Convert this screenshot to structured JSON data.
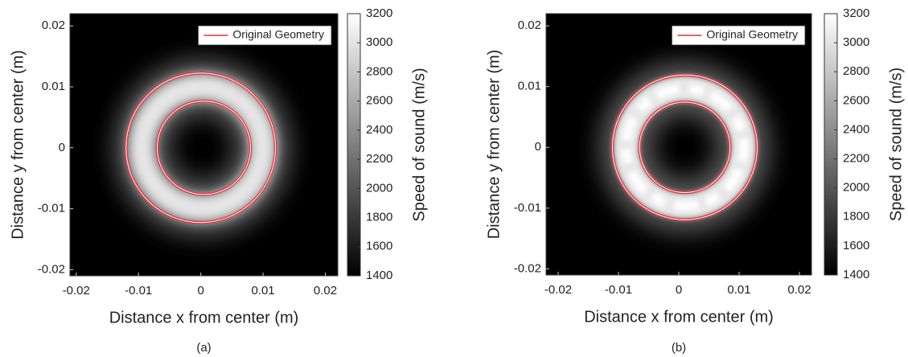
{
  "chart_data": [
    {
      "type": "heatmap",
      "caption": "(a)",
      "xlabel": "Distance x from center (m)",
      "ylabel": "Distance y from center (m)",
      "xlim": [
        -0.021,
        0.022
      ],
      "ylim": [
        -0.021,
        0.022
      ],
      "xticks": [
        -0.02,
        -0.01,
        0,
        0.01,
        0.02
      ],
      "yticks": [
        -0.02,
        -0.01,
        0,
        0.01,
        0.02
      ],
      "colormap": "gray",
      "colorbar_label": "Speed of sound (m/s)",
      "clim": [
        1400,
        3200
      ],
      "cticks": [
        1400,
        1600,
        1800,
        2000,
        2200,
        2400,
        2600,
        2800,
        3000,
        3200
      ],
      "legend": "upper right",
      "series": [
        {
          "name": "Original Geometry",
          "color": "#e0303a",
          "cx": [
            0,
            0.0005
          ],
          "cy": [
            0,
            0
          ],
          "r": [
            0.012,
            0.0075
          ]
        }
      ]
    },
    {
      "type": "heatmap",
      "caption": "(b)",
      "xlabel": "Distance x from center (m)",
      "ylabel": "Distance y from center (m)",
      "xlim": [
        -0.022,
        0.022
      ],
      "ylim": [
        -0.021,
        0.022
      ],
      "xticks": [
        -0.02,
        -0.01,
        0,
        0.01,
        0.02
      ],
      "yticks": [
        -0.02,
        -0.01,
        0,
        0.01,
        0.02
      ],
      "colormap": "gray",
      "colorbar_label": "Speed of sound (m/s)",
      "clim": [
        1400,
        3200
      ],
      "cticks": [
        1400,
        1600,
        1800,
        2000,
        2200,
        2400,
        2600,
        2800,
        3000,
        3200
      ],
      "legend": "upper right",
      "series": [
        {
          "name": "Original Geometry",
          "color": "#e0303a",
          "cx": [
            0.001,
            0.001
          ],
          "cy": [
            0,
            0
          ],
          "r": [
            0.012,
            0.0075
          ]
        }
      ]
    }
  ]
}
